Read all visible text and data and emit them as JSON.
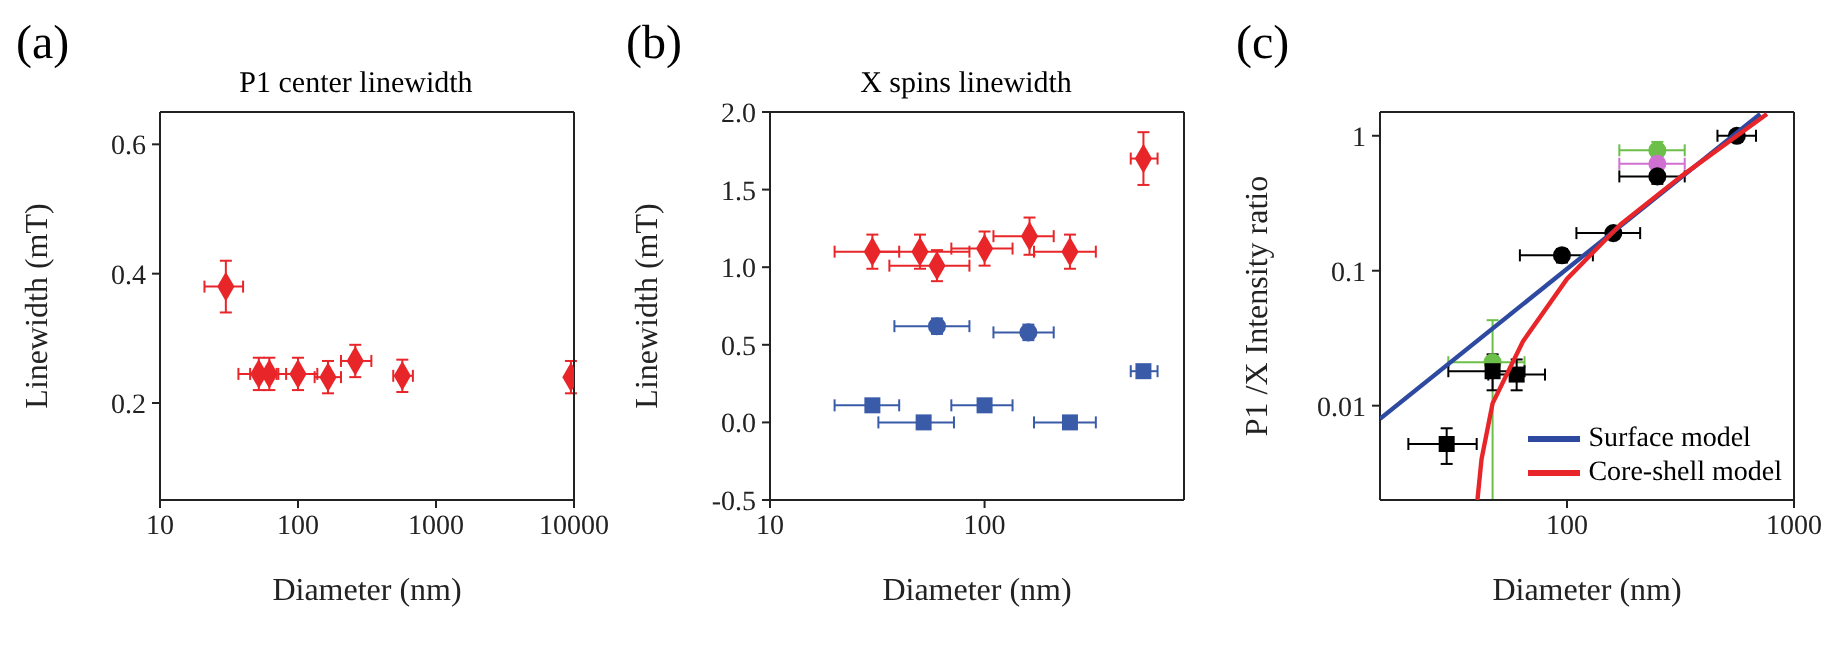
{
  "chart_data": [
    {
      "type": "scatter",
      "title": "(a)",
      "subtitle": "P1 center linewidth",
      "xlabel": "Diameter (nm)",
      "ylabel": "Linewidth (mT)",
      "log": "x",
      "xlim": [
        10,
        10000
      ],
      "xticks": [
        10,
        100,
        1000,
        10000
      ],
      "ylim": [
        0.05,
        0.65
      ],
      "yticks": [
        0.2,
        0.4,
        0.6
      ],
      "grid": false,
      "legend": false,
      "series": [
        {
          "color": "#e8262a",
          "marker": "diamond",
          "x": [
            30,
            52,
            62,
            100,
            165,
            260,
            570,
            9500
          ],
          "values": [
            0.38,
            0.245,
            0.245,
            0.245,
            0.24,
            0.265,
            0.242,
            0.24
          ],
          "errors": [
            0.04,
            0.025,
            0.025,
            0.025,
            0.025,
            0.025,
            0.025,
            0.025
          ],
          "xerrors": [
            [
              21,
              40
            ],
            [
              37,
              70
            ],
            [
              45,
              82
            ],
            [
              72,
              138
            ],
            [
              132,
              205
            ],
            [
              205,
              340
            ],
            [
              490,
              680
            ],
            [
              9000,
              10000
            ]
          ]
        }
      ]
    },
    {
      "type": "scatter",
      "title": "(b)",
      "subtitle": "X spins linewidth",
      "xlabel": "Diameter (nm)",
      "ylabel": "Linewidth (mT)",
      "log": "x",
      "xlim": [
        10,
        850
      ],
      "xticks": [
        10,
        100
      ],
      "ylim": [
        -0.5,
        2.0
      ],
      "yticks": [
        {
          "value": -0.5,
          "label": "-0.5"
        },
        {
          "value": 0,
          "label": "0.0"
        },
        {
          "value": 0.5,
          "label": "0.5"
        },
        {
          "value": 1,
          "label": "1.0"
        },
        {
          "value": 1.5,
          "label": "1.5"
        },
        {
          "value": 2,
          "label": "2.0"
        }
      ],
      "grid": false,
      "legend": false,
      "series": [
        {
          "color": "#e8262a",
          "marker": "diamond",
          "x": [
            30,
            50,
            60,
            100,
            162,
            250,
            550
          ],
          "values": [
            1.1,
            1.1,
            1.01,
            1.12,
            1.2,
            1.1,
            1.7
          ],
          "errors": [
            0.11,
            0.11,
            0.1,
            0.11,
            0.12,
            0.11,
            0.17
          ],
          "xerrors": [
            [
              20,
              40
            ],
            [
              31,
              85
            ],
            [
              36,
              85
            ],
            [
              70,
              135
            ],
            [
              110,
              210
            ],
            [
              170,
              330
            ],
            [
              480,
              640
            ]
          ]
        },
        {
          "color": "#3a5ba8",
          "marker": "circle",
          "x": [
            60,
            160
          ],
          "values": [
            0.62,
            0.58
          ],
          "errors": [
            0.05,
            0.05
          ],
          "xerrors": [
            [
              38,
              85
            ],
            [
              110,
              210
            ]
          ]
        },
        {
          "color": "#3a5ba8",
          "marker": "square",
          "x": [
            30,
            52,
            100,
            250,
            550
          ],
          "values": [
            0.11,
            0.0,
            0.11,
            0.0,
            0.33
          ],
          "errors": [
            0.02,
            0.02,
            0.02,
            0.02,
            0.02
          ],
          "xerrors": [
            [
              20,
              40
            ],
            [
              32,
              72
            ],
            [
              70,
              135
            ],
            [
              170,
              330
            ],
            [
              480,
              640
            ]
          ]
        }
      ]
    },
    {
      "type": "scatter",
      "title": "(c)",
      "xlabel": "Diameter (nm)",
      "ylabel": "P1 /X Intensity ratio",
      "log": "xy",
      "xlim": [
        15,
        1000
      ],
      "xticks": [
        100,
        1000
      ],
      "ylim": [
        0.002,
        1.5
      ],
      "yticks": [
        0.01,
        0.1,
        1
      ],
      "grid": false,
      "legend": "bottom right",
      "series": [
        {
          "color": "#6cc04a",
          "marker": "circle",
          "x": [
            47,
            250
          ],
          "values": [
            0.021,
            0.78
          ],
          "errors": [
            [
              0.002,
              0.043
            ],
            [
              0.65,
              0.9
            ]
          ],
          "xerrors": [
            [
              30,
              65
            ],
            [
              170,
              330
            ]
          ]
        },
        {
          "color": "#d070d0",
          "marker": "circle",
          "x": [
            250
          ],
          "values": [
            0.62
          ],
          "xerrors": [
            [
              170,
              330
            ]
          ]
        },
        {
          "color": "#000000",
          "marker": "square",
          "x": [
            29.5,
            47,
            60
          ],
          "values": [
            0.0052,
            0.018,
            0.017
          ],
          "errors": [
            [
              0.0037,
              0.0068
            ],
            [
              0.013,
              0.024
            ],
            [
              0.013,
              0.022
            ]
          ],
          "xerrors": [
            [
              20,
              40
            ],
            [
              30,
              65
            ],
            [
              45,
              80
            ]
          ]
        },
        {
          "color": "#000000",
          "marker": "circle",
          "x": [
            95,
            160,
            250,
            560
          ],
          "values": [
            0.13,
            0.19,
            0.5,
            1.0
          ],
          "errors": [
            [
              0.115,
              0.145
            ],
            [
              0.18,
              0.2
            ],
            [
              0.44,
              0.57
            ],
            [
              0.92,
              1.08
            ]
          ],
          "xerrors": [
            [
              62,
              130
            ],
            [
              110,
              210
            ],
            [
              170,
              330
            ],
            [
              460,
              680
            ]
          ]
        },
        {
          "type": "line",
          "name": "Surface model",
          "color": "#2e4aa0",
          "x": [
            15,
            710
          ],
          "values": [
            0.008,
            1.45
          ]
        },
        {
          "type": "line",
          "name": "Core-shell model",
          "color": "#e8262a",
          "x": [
            40.3,
            42,
            47,
            64,
            100,
            172,
            318,
            760
          ],
          "values": [
            0.002,
            0.004,
            0.0104,
            0.03,
            0.087,
            0.22,
            0.5,
            1.45
          ]
        }
      ]
    }
  ]
}
